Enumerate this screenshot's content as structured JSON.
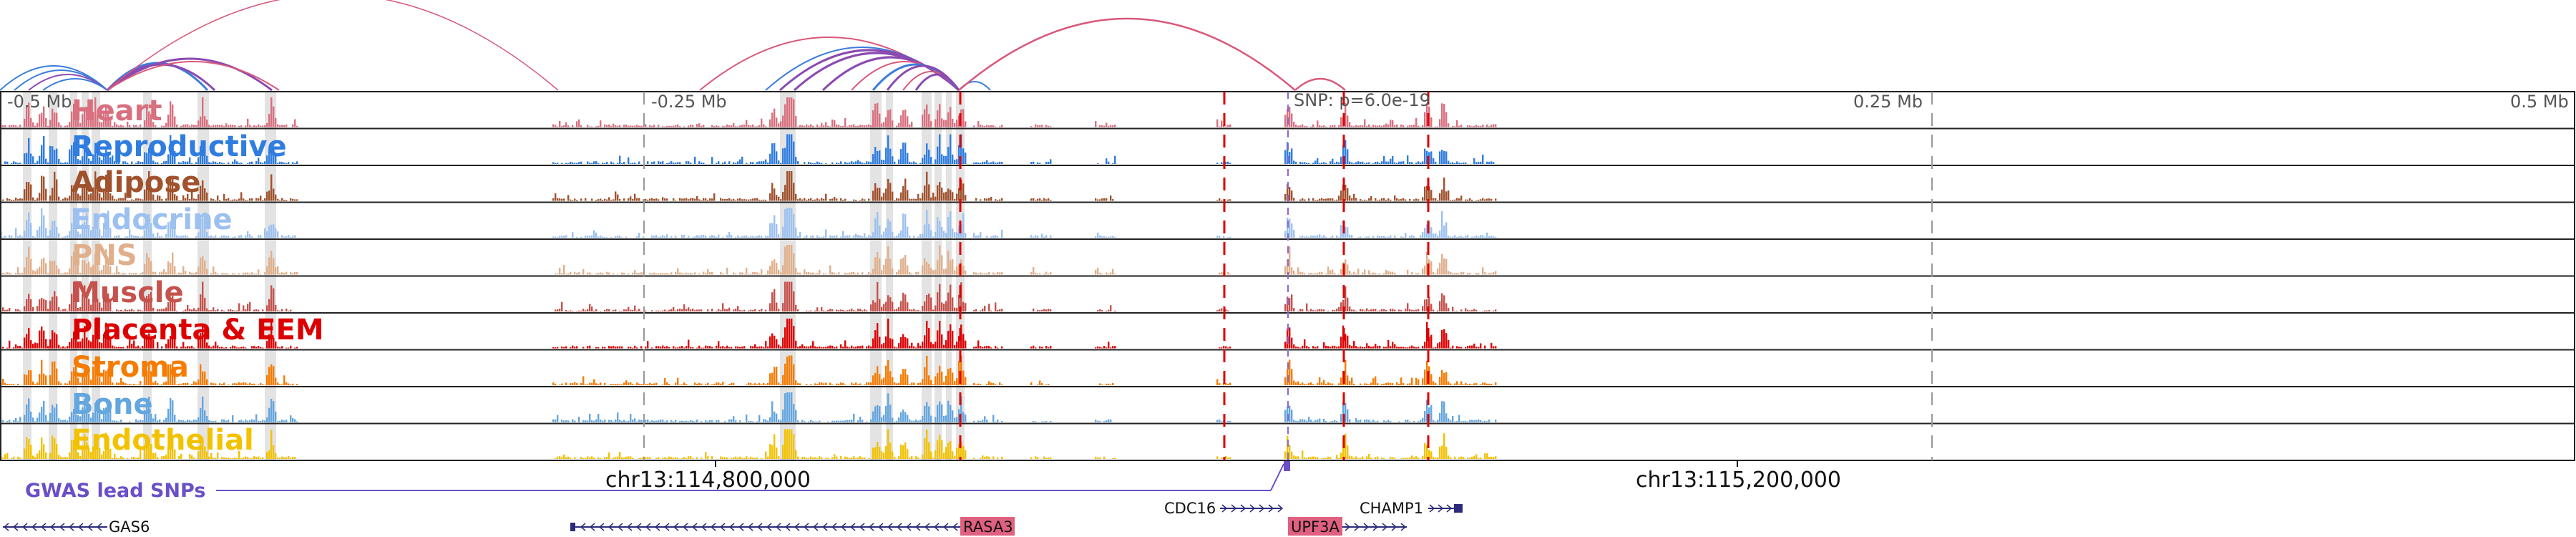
{
  "chart_data": {
    "type": "genome-browser-tracks",
    "chromosome": "chr13",
    "axis_ticks": [
      "-0.5 Mb",
      "-0.25 Mb",
      "0.25 Mb",
      "0.5 Mb"
    ],
    "snp_label": "SNP: p=6.0e-19",
    "genomic_coords": [
      "chr13:114,800,000",
      "chr13:115,200,000"
    ],
    "tracks": [
      {
        "name": "Heart",
        "color": "#d9707f"
      },
      {
        "name": "Reproductive",
        "color": "#2f7de0"
      },
      {
        "name": "Adipose",
        "color": "#a0522d"
      },
      {
        "name": "Endocrine",
        "color": "#9cc1f0"
      },
      {
        "name": "PNS",
        "color": "#e0b08c"
      },
      {
        "name": "Muscle",
        "color": "#c5524c"
      },
      {
        "name": "Placenta & EEM",
        "color": "#dd0000"
      },
      {
        "name": "Stroma",
        "color": "#f57c00"
      },
      {
        "name": "Bone",
        "color": "#64a6df"
      },
      {
        "name": "Endothelial",
        "color": "#f2c200"
      }
    ],
    "gwas_label": "GWAS lead SNPs",
    "genes": [
      {
        "name": "GAS6",
        "strand": "-",
        "highlight": false
      },
      {
        "name": "RASA3",
        "strand": "-",
        "highlight": true
      },
      {
        "name": "CDC16",
        "strand": "+",
        "highlight": false
      },
      {
        "name": "UPF3A",
        "strand": "+",
        "highlight": true
      },
      {
        "name": "CHAMP1",
        "strand": "+",
        "highlight": false
      }
    ],
    "colors": {
      "arc_blue": "#3b7ddd",
      "arc_pink": "#d9587a",
      "arc_purple": "#8a4ab0",
      "snp_line": "#dd0000",
      "gwas": "#6a4fc8",
      "gene": "#2b2b7a",
      "highlight_gene": "#e06080"
    }
  }
}
